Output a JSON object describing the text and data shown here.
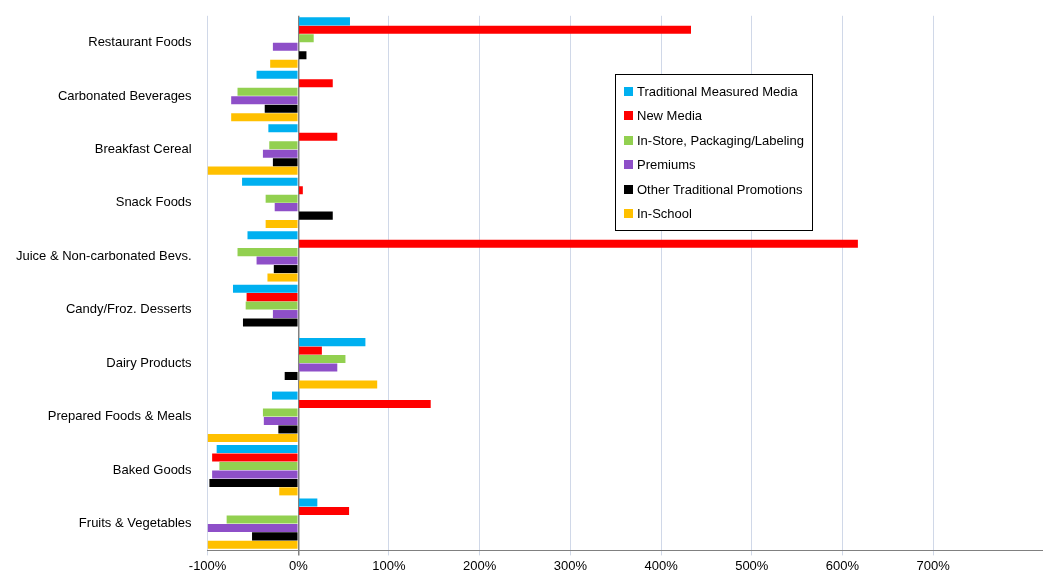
{
  "chart_data": {
    "type": "bar",
    "orientation": "horizontal",
    "categories": [
      "Restaurant Foods",
      "Carbonated Beverages",
      "Breakfast Cereal",
      "Snack Foods",
      "Juice & Non-carbonated Bevs.",
      "Candy/Froz. Desserts",
      "Dairy Products",
      "Prepared Foods & Meals",
      "Baked Goods",
      "Fruits & Vegetables"
    ],
    "series": [
      {
        "name": "Traditional Measured Media",
        "color": "#00b0f0",
        "values": [
          57,
          -46,
          -33,
          -62,
          -56,
          -72,
          74,
          -29,
          -90,
          21
        ]
      },
      {
        "name": "New Media",
        "color": "#ff0000",
        "values": [
          433,
          38,
          43,
          5,
          617,
          -57,
          26,
          146,
          -95,
          56
        ]
      },
      {
        "name": "In-Store, Packaging/Labeling",
        "color": "#92d050",
        "values": [
          17,
          -67,
          -32,
          -36,
          -67,
          -58,
          52,
          -39,
          -87,
          -79
        ]
      },
      {
        "name": "Premiums",
        "color": "#8e4fc8",
        "values": [
          -28,
          -74,
          -39,
          -26,
          -46,
          -28,
          43,
          -38,
          -95,
          -100
        ]
      },
      {
        "name": "Other Traditional Promotions",
        "color": "#000000",
        "values": [
          9,
          -37,
          -28,
          38,
          -27,
          -61,
          -15,
          -22,
          -98,
          -51
        ]
      },
      {
        "name": "In-School",
        "color": "#ffc000",
        "values": [
          -31,
          -74,
          -100,
          -36,
          -34,
          null,
          87,
          -100,
          -21,
          -100
        ]
      }
    ],
    "xlim": [
      -100,
      820
    ],
    "xticks": [
      {
        "value": -100,
        "label": "-100%"
      },
      {
        "value": 0,
        "label": "0%"
      },
      {
        "value": 100,
        "label": "100%"
      },
      {
        "value": 200,
        "label": "200%"
      },
      {
        "value": 300,
        "label": "300%"
      },
      {
        "value": 400,
        "label": "400%"
      },
      {
        "value": 500,
        "label": "500%"
      },
      {
        "value": 600,
        "label": "600%"
      },
      {
        "value": 700,
        "label": "700%"
      }
    ],
    "grid": "x",
    "legend": "top right"
  }
}
